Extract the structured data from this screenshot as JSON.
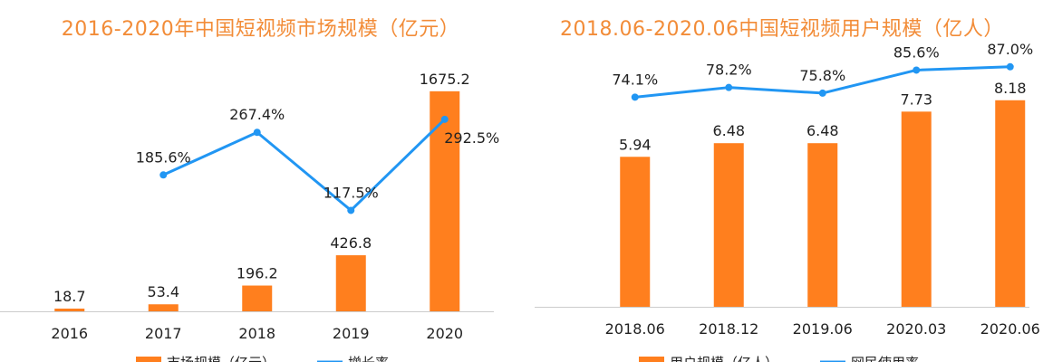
{
  "chart_data": [
    {
      "type": "bar",
      "title": "2016-2020年中国短视频市场规模（亿元）",
      "categories": [
        "2016",
        "2017",
        "2018",
        "2019",
        "2020"
      ],
      "series": [
        {
          "name": "市场规模（亿元）",
          "kind": "bar",
          "values": [
            18.7,
            53.4,
            196.2,
            426.8,
            1675.2
          ],
          "labels": [
            "18.7",
            "53.4",
            "196.2",
            "426.8",
            "1675.2"
          ]
        },
        {
          "name": "增长率",
          "kind": "line",
          "values": [
            null,
            185.6,
            267.4,
            117.5,
            292.5
          ],
          "labels": [
            "",
            "185.6%",
            "267.4%",
            "117.5%",
            "292.5%"
          ]
        }
      ],
      "ylim": [
        0,
        1750
      ],
      "rate_ylim": [
        0,
        400
      ],
      "grid": false,
      "legend": "bottom",
      "colors": {
        "bar": "#FF7F1E",
        "line": "#2196F3",
        "title": "#F28C38"
      }
    },
    {
      "type": "bar",
      "title": "2018.06-2020.06中国短视频用户规模（亿人）",
      "categories": [
        "2018.06",
        "2018.12",
        "2019.06",
        "2020.03",
        "2020.06"
      ],
      "series": [
        {
          "name": "用户规模（亿人）",
          "kind": "bar",
          "values": [
            5.94,
            6.48,
            6.48,
            7.73,
            8.18
          ],
          "labels": [
            "5.94",
            "6.48",
            "6.48",
            "7.73",
            "8.18"
          ]
        },
        {
          "name": "网民使用率",
          "kind": "line",
          "values": [
            74.1,
            78.2,
            75.8,
            85.6,
            87.0
          ],
          "labels": [
            "74.1%",
            "78.2%",
            "75.8%",
            "85.6%",
            "87.0%"
          ]
        }
      ],
      "ylim": [
        0,
        10
      ],
      "rate_ylim": [
        0,
        100
      ],
      "grid": false,
      "legend": "bottom",
      "colors": {
        "bar": "#FF7F1E",
        "line": "#2196F3",
        "title": "#F28C38"
      }
    }
  ]
}
